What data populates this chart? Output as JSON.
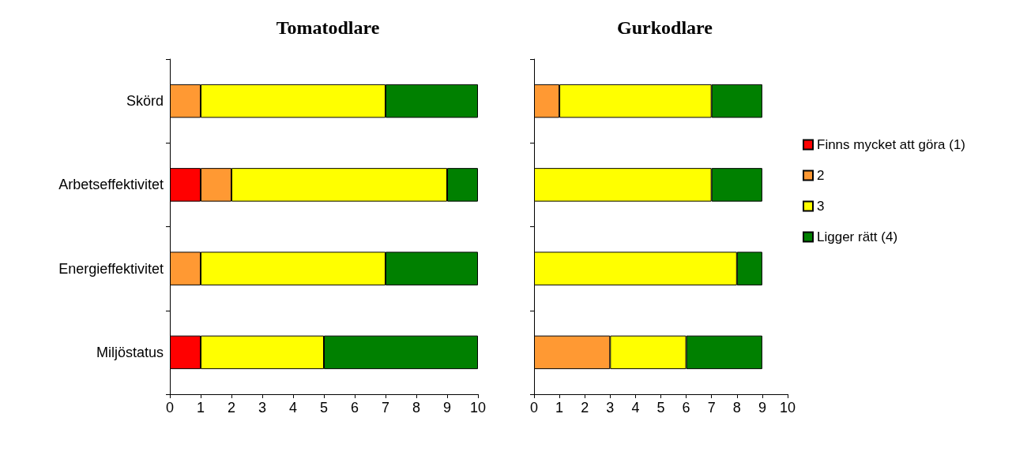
{
  "chart_data": [
    {
      "type": "bar",
      "title": "Tomatodlare",
      "orientation": "horizontal",
      "stacked": true,
      "categories": [
        "Skörd",
        "Arbetseffektivitet",
        "Energieffektivitet",
        "Miljöstatus"
      ],
      "xlim": [
        0,
        10
      ],
      "xticks": [
        0,
        1,
        2,
        3,
        4,
        5,
        6,
        7,
        8,
        9,
        10
      ],
      "grid": false,
      "legend": false,
      "series": [
        {
          "color": "#ff0000",
          "values": [
            0,
            1,
            0,
            1
          ]
        },
        {
          "color": "#ff9933",
          "values": [
            1,
            1,
            1,
            0
          ]
        },
        {
          "color": "#ffff00",
          "values": [
            6,
            7,
            6,
            4
          ]
        },
        {
          "color": "#008000",
          "values": [
            3,
            1,
            3,
            5
          ]
        }
      ]
    },
    {
      "type": "bar",
      "title": "Gurkodlare",
      "orientation": "horizontal",
      "stacked": true,
      "categories": [
        null,
        null,
        null,
        null
      ],
      "xlim": [
        0,
        10
      ],
      "xticks": [
        0,
        1,
        2,
        3,
        4,
        5,
        6,
        7,
        8,
        9,
        10
      ],
      "grid": false,
      "legend": "right",
      "series": [
        {
          "name": "Finns mycket att göra (1)",
          "color": "#ff0000",
          "values": [
            0,
            0,
            0,
            0
          ]
        },
        {
          "name": "2",
          "color": "#ff9933",
          "values": [
            1,
            0,
            0,
            3
          ]
        },
        {
          "name": "3",
          "color": "#ffff00",
          "values": [
            6,
            7,
            8,
            3
          ]
        },
        {
          "name": "Ligger rätt (4)",
          "color": "#008000",
          "values": [
            2,
            2,
            1,
            3
          ]
        }
      ]
    }
  ]
}
